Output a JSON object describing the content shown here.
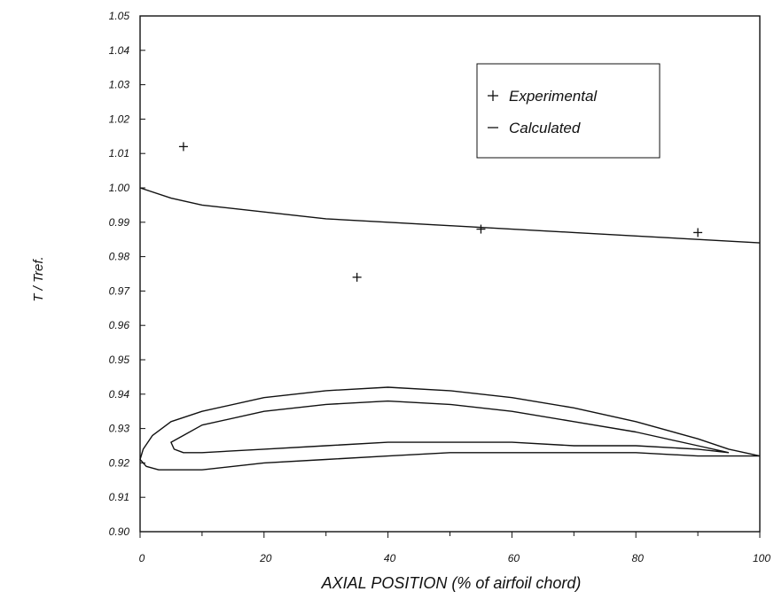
{
  "chart_data": {
    "type": "line",
    "title": "",
    "xlabel": "AXIAL POSITION (% of airfoil chord)",
    "ylabel": "T / Tref.",
    "xlim": [
      0,
      100
    ],
    "ylim": [
      0.9,
      1.05
    ],
    "x_ticks": [
      0,
      20,
      40,
      60,
      80,
      100
    ],
    "x_tick_labels": [
      "0",
      "20",
      "40",
      "60",
      "80",
      "100"
    ],
    "y_ticks": [
      0.9,
      0.91,
      0.92,
      0.93,
      0.94,
      0.95,
      0.96,
      0.97,
      0.98,
      0.99,
      1.0,
      1.01,
      1.02,
      1.03,
      1.04,
      1.05
    ],
    "y_tick_labels": [
      "0.90",
      "0.91",
      "0.92",
      "0.93",
      "0.94",
      "0.95",
      "0.96",
      "0.97",
      "0.98",
      "0.99",
      "1.00",
      "1.01",
      "1.02",
      "1.03",
      "1.04",
      "1.05"
    ],
    "grid": false,
    "legend_position": "top-right",
    "series": [
      {
        "name": "Experimental",
        "kind": "scatter",
        "marker": "+",
        "x": [
          7,
          35,
          55,
          90
        ],
        "y": [
          1.012,
          0.974,
          0.988,
          0.987
        ]
      },
      {
        "name": "Calculated",
        "kind": "line",
        "x": [
          0,
          5,
          10,
          20,
          30,
          40,
          50,
          60,
          70,
          80,
          90,
          100
        ],
        "y": [
          1.0,
          0.997,
          0.995,
          0.993,
          0.991,
          0.99,
          0.989,
          0.988,
          0.987,
          0.986,
          0.985,
          0.984
        ]
      }
    ],
    "outlines": [
      {
        "kind": "airfoil-outer",
        "points": [
          [
            100,
            0.922
          ],
          [
            95,
            0.924
          ],
          [
            90,
            0.927
          ],
          [
            80,
            0.932
          ],
          [
            70,
            0.936
          ],
          [
            60,
            0.939
          ],
          [
            50,
            0.941
          ],
          [
            40,
            0.942
          ],
          [
            30,
            0.941
          ],
          [
            20,
            0.939
          ],
          [
            10,
            0.935
          ],
          [
            5,
            0.932
          ],
          [
            2,
            0.928
          ],
          [
            0.5,
            0.924
          ],
          [
            0,
            0.921
          ],
          [
            1,
            0.919
          ],
          [
            3,
            0.918
          ],
          [
            6,
            0.918
          ],
          [
            10,
            0.918
          ],
          [
            20,
            0.92
          ],
          [
            30,
            0.921
          ],
          [
            40,
            0.922
          ],
          [
            50,
            0.923
          ],
          [
            60,
            0.923
          ],
          [
            70,
            0.923
          ],
          [
            80,
            0.923
          ],
          [
            90,
            0.922
          ],
          [
            100,
            0.922
          ]
        ]
      },
      {
        "kind": "airfoil-inner",
        "points": [
          [
            95,
            0.923
          ],
          [
            90,
            0.925
          ],
          [
            80,
            0.929
          ],
          [
            70,
            0.932
          ],
          [
            60,
            0.935
          ],
          [
            50,
            0.937
          ],
          [
            40,
            0.938
          ],
          [
            30,
            0.937
          ],
          [
            20,
            0.935
          ],
          [
            10,
            0.931
          ],
          [
            7,
            0.928
          ],
          [
            5,
            0.926
          ],
          [
            5.5,
            0.924
          ],
          [
            7,
            0.923
          ],
          [
            10,
            0.923
          ],
          [
            20,
            0.924
          ],
          [
            30,
            0.925
          ],
          [
            40,
            0.926
          ],
          [
            50,
            0.926
          ],
          [
            60,
            0.926
          ],
          [
            70,
            0.925
          ],
          [
            80,
            0.925
          ],
          [
            90,
            0.924
          ],
          [
            95,
            0.923
          ]
        ]
      }
    ]
  }
}
